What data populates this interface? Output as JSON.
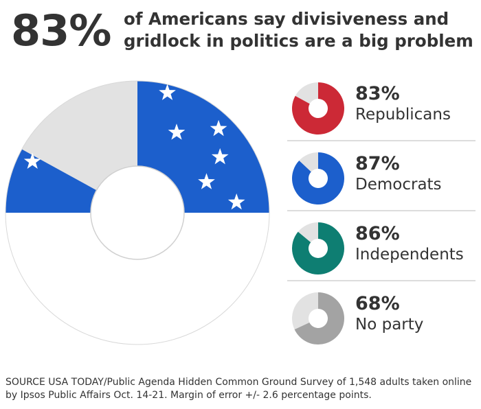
{
  "headline": {
    "percent": "83%",
    "text": "of Americans say divisiveness and gridlock in politics are a big problem"
  },
  "colors": {
    "red": "#cc2936",
    "blue": "#1c5fcc",
    "teal": "#0e7e72",
    "gray": "#a3a3a3",
    "remainder": "#e2e2e2"
  },
  "chart_data": {
    "type": "pie",
    "title": "83% of Americans say divisiveness and gridlock in politics are a big problem",
    "overall": {
      "label": "Americans",
      "value": 83
    },
    "series": [
      {
        "name": "Republicans",
        "value": 83,
        "label": "83%",
        "color": "#cc2936"
      },
      {
        "name": "Democrats",
        "value": 87,
        "label": "87%",
        "color": "#1c5fcc"
      },
      {
        "name": "Independents",
        "value": 86,
        "label": "86%",
        "color": "#0e7e72"
      },
      {
        "name": "No party",
        "value": 68,
        "label": "68%",
        "color": "#a3a3a3"
      }
    ]
  },
  "source": "SOURCE USA TODAY/Public Agenda Hidden Common Ground Survey of 1,548 adults taken online by Ipsos Public Affairs Oct. 14-21. Margin of error +/- 2.6 percentage points."
}
